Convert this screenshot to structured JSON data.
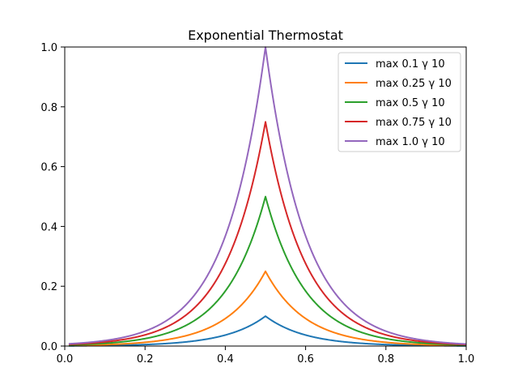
{
  "chart_data": {
    "type": "line",
    "title": "Exponential Thermostat",
    "xlabel": "",
    "ylabel": "",
    "xlim": [
      0,
      1
    ],
    "ylim": [
      0,
      1
    ],
    "xticks": [
      "0.0",
      "0.2",
      "0.4",
      "0.6",
      "0.8",
      "1.0"
    ],
    "yticks": [
      "0.0",
      "0.2",
      "0.4",
      "0.6",
      "0.8",
      "1.0"
    ],
    "grid": false,
    "legend_position": "top-right",
    "curve": {
      "center": 0.5,
      "gamma": 10,
      "x_start": 0.01,
      "x_end": 1.0
    },
    "series": [
      {
        "name": "max 0.1 γ 10",
        "max": 0.1,
        "color": "#1f77b4"
      },
      {
        "name": "max 0.25 γ 10",
        "max": 0.25,
        "color": "#ff7f0e"
      },
      {
        "name": "max 0.5 γ 10",
        "max": 0.5,
        "color": "#2ca02c"
      },
      {
        "name": "max 0.75 γ 10",
        "max": 0.75,
        "color": "#d62728"
      },
      {
        "name": "max 1.0 γ 10",
        "max": 1.0,
        "color": "#9467bd"
      }
    ]
  }
}
